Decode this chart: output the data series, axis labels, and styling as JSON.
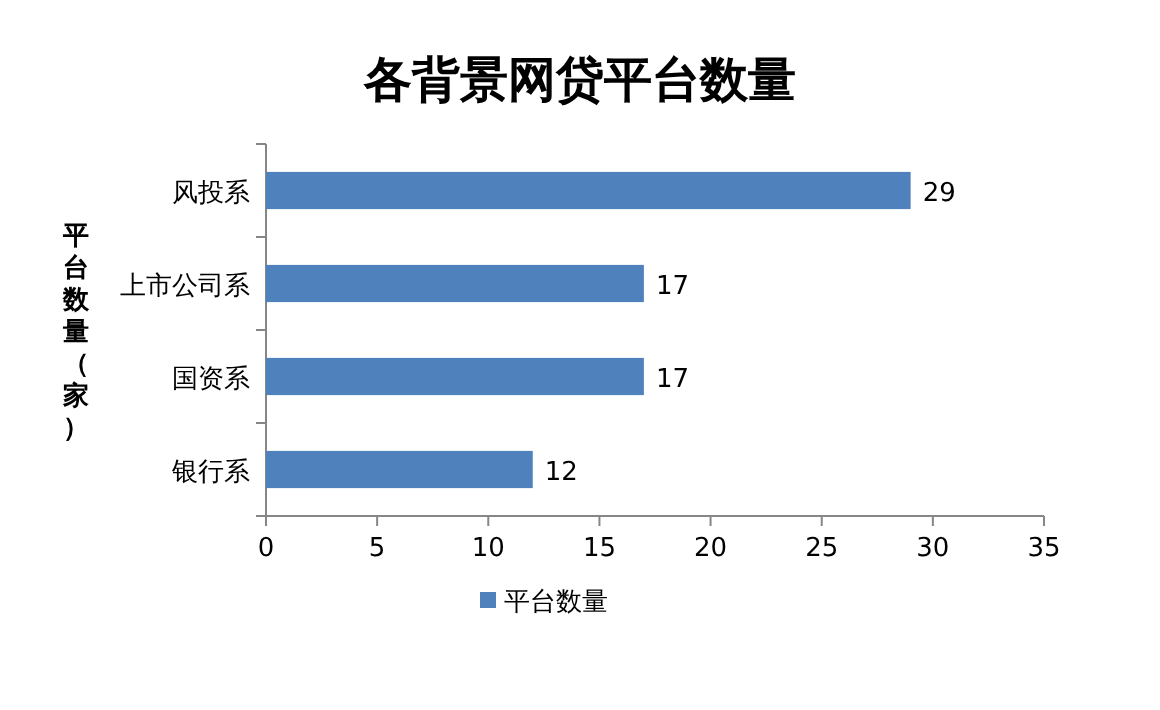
{
  "chart_data": {
    "type": "bar",
    "orientation": "horizontal",
    "title": "各背景网贷平台数量",
    "ylabel": "平台数量（家）",
    "categories": [
      "风投系",
      "上市公司系",
      "国资系",
      "银行系"
    ],
    "series": [
      {
        "name": "平台数量",
        "color": "#4f81bd",
        "values": [
          29,
          17,
          17,
          12
        ]
      }
    ],
    "xlim": [
      0,
      35
    ],
    "xticks": [
      0,
      5,
      10,
      15,
      20,
      25,
      30,
      35
    ],
    "data_labels": true,
    "legend": "bottom",
    "grid": false
  }
}
